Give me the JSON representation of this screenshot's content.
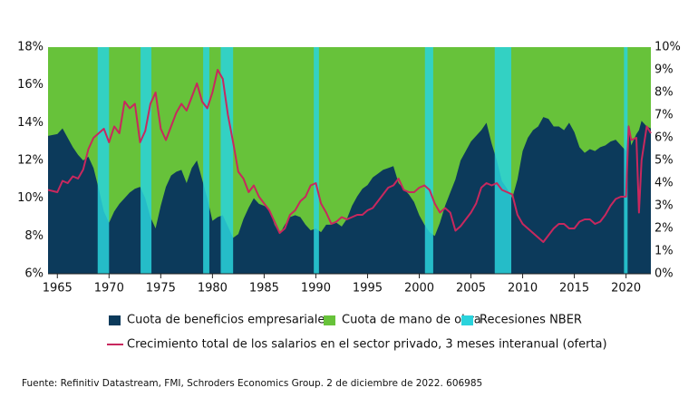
{
  "chart_data": {
    "type": "area",
    "grid": false,
    "xlim": [
      1964.1,
      2022.4
    ],
    "xticks": [
      1965,
      1970,
      1975,
      1980,
      1985,
      1990,
      1995,
      2000,
      2005,
      2010,
      2015,
      2020
    ],
    "ylim": [
      6,
      18
    ],
    "yticks": [
      {
        "value": 6,
        "label": "6%"
      },
      {
        "value": 8,
        "label": "8%"
      },
      {
        "value": 10,
        "label": "10%"
      },
      {
        "value": 12,
        "label": "12%"
      },
      {
        "value": 14,
        "label": "14%"
      },
      {
        "value": 16,
        "label": "16%"
      },
      {
        "value": 18,
        "label": "18%"
      }
    ],
    "y2lim": [
      0,
      10
    ],
    "y2ticks": [
      {
        "value": 0,
        "label": "0%"
      },
      {
        "value": 1,
        "label": "1%"
      },
      {
        "value": 2,
        "label": "2%"
      },
      {
        "value": 3,
        "label": "3%"
      },
      {
        "value": 4,
        "label": "4%"
      },
      {
        "value": 5,
        "label": "5%"
      },
      {
        "value": 6,
        "label": "6%"
      },
      {
        "value": 7,
        "label": "7%"
      },
      {
        "value": 8,
        "label": "8%"
      },
      {
        "value": 9,
        "label": "9%"
      },
      {
        "value": 10,
        "label": "10%"
      }
    ],
    "x": [
      1964.1,
      1965,
      1965.5,
      1966,
      1966.5,
      1967,
      1967.5,
      1968,
      1968.5,
      1969,
      1969.5,
      1970,
      1970.5,
      1971,
      1971.5,
      1972,
      1972.5,
      1973,
      1973.5,
      1974,
      1974.5,
      1975,
      1975.5,
      1976,
      1976.5,
      1977,
      1977.5,
      1978,
      1978.5,
      1979,
      1979.5,
      1980,
      1980.5,
      1981,
      1981.5,
      1982,
      1982.5,
      1983,
      1983.5,
      1984,
      1984.5,
      1985,
      1985.5,
      1986,
      1986.5,
      1987,
      1987.5,
      1988,
      1988.5,
      1989,
      1989.5,
      1990,
      1990.5,
      1991,
      1991.5,
      1992,
      1992.5,
      1993,
      1993.5,
      1994,
      1994.5,
      1995,
      1995.5,
      1996,
      1996.5,
      1997,
      1997.5,
      1998,
      1998.5,
      1999,
      1999.5,
      2000,
      2000.5,
      2001,
      2001.5,
      2002,
      2002.5,
      2003,
      2003.5,
      2004,
      2004.5,
      2005,
      2005.5,
      2006,
      2006.5,
      2007,
      2007.5,
      2008,
      2008.5,
      2009,
      2009.5,
      2010,
      2010.5,
      2011,
      2011.5,
      2012,
      2012.5,
      2013,
      2013.5,
      2014,
      2014.5,
      2015,
      2015.5,
      2016,
      2016.5,
      2017,
      2017.5,
      2018,
      2018.5,
      2019,
      2019.5,
      2020,
      2020.25,
      2020.5,
      2021,
      2021.25,
      2021.5,
      2022,
      2022.4
    ],
    "series": [
      {
        "name": "Cuota de beneficios empresariales",
        "type": "area",
        "color": "#0c3a5b",
        "values": [
          13.3,
          13.4,
          13.7,
          13.2,
          12.7,
          12.3,
          12.0,
          12.2,
          11.6,
          10.5,
          9.3,
          8.7,
          9.3,
          9.7,
          10.0,
          10.3,
          10.5,
          10.6,
          10.0,
          9.0,
          8.4,
          9.6,
          10.6,
          11.2,
          11.4,
          11.5,
          10.8,
          11.6,
          12.0,
          11.0,
          10.0,
          8.8,
          9.0,
          9.1,
          8.5,
          7.9,
          8.1,
          8.9,
          9.5,
          10.0,
          9.7,
          9.6,
          9.4,
          8.6,
          8.1,
          8.6,
          9.0,
          9.1,
          9.0,
          8.6,
          8.3,
          8.4,
          8.2,
          8.6,
          8.6,
          8.7,
          8.5,
          8.9,
          9.6,
          10.1,
          10.5,
          10.7,
          11.1,
          11.3,
          11.5,
          11.6,
          11.7,
          10.8,
          10.5,
          10.2,
          9.8,
          9.1,
          8.6,
          8.2,
          8.0,
          8.7,
          9.6,
          10.3,
          11.0,
          12.0,
          12.5,
          13.0,
          13.3,
          13.6,
          14.0,
          12.9,
          12.0,
          10.9,
          10.5,
          10.0,
          11.0,
          12.5,
          13.2,
          13.6,
          13.8,
          14.3,
          14.2,
          13.8,
          13.8,
          13.6,
          14.0,
          13.5,
          12.7,
          12.4,
          12.6,
          12.5,
          12.7,
          12.8,
          13.0,
          13.1,
          12.8,
          12.5,
          13.9,
          12.8,
          13.4,
          13.6,
          14.1,
          13.8,
          13.7
        ]
      },
      {
        "name": "Cuota de mano de obra",
        "type": "fill-above",
        "color": "#67c23a"
      },
      {
        "name": "Recesiones NBER",
        "type": "span",
        "color": "#2ad3dc",
        "ranges": [
          [
            1968.9,
            1970.0
          ],
          [
            1973.05,
            1974.1
          ],
          [
            1979.1,
            1979.7
          ],
          [
            1980.8,
            1982.0
          ],
          [
            1989.8,
            1990.3
          ],
          [
            2000.55,
            2001.35
          ],
          [
            2007.3,
            2008.9
          ],
          [
            2019.8,
            2020.15
          ]
        ]
      },
      {
        "name": "Crecimiento total de los salarios en el sector privado, 3 meses interanual (oferta)",
        "type": "line",
        "axis": "y2",
        "color": "#c8285e",
        "values": [
          3.7,
          3.6,
          4.1,
          4.0,
          4.3,
          4.2,
          4.6,
          5.5,
          6.0,
          6.2,
          6.4,
          5.8,
          6.5,
          6.2,
          7.6,
          7.3,
          7.5,
          5.8,
          6.3,
          7.5,
          8.0,
          6.4,
          5.9,
          6.5,
          7.1,
          7.5,
          7.2,
          7.8,
          8.4,
          7.6,
          7.3,
          8.0,
          9.0,
          8.6,
          7.0,
          5.8,
          4.5,
          4.2,
          3.6,
          3.9,
          3.4,
          3.1,
          2.8,
          2.3,
          1.8,
          2.0,
          2.6,
          2.8,
          3.2,
          3.4,
          3.9,
          4.0,
          3.1,
          2.7,
          2.2,
          2.3,
          2.5,
          2.4,
          2.5,
          2.6,
          2.6,
          2.8,
          2.9,
          3.2,
          3.5,
          3.8,
          3.9,
          4.2,
          3.7,
          3.6,
          3.6,
          3.8,
          3.9,
          3.7,
          3.1,
          2.7,
          2.9,
          2.7,
          1.9,
          2.1,
          2.4,
          2.7,
          3.1,
          3.8,
          4.0,
          3.9,
          4.0,
          3.7,
          3.6,
          3.5,
          2.6,
          2.2,
          2.0,
          1.8,
          1.6,
          1.4,
          1.7,
          2.0,
          2.2,
          2.2,
          2.0,
          2.0,
          2.3,
          2.4,
          2.4,
          2.2,
          2.3,
          2.6,
          3.0,
          3.3,
          3.4,
          3.4,
          6.5,
          5.9,
          6.0,
          2.7,
          5.0,
          6.5,
          6.2
        ]
      }
    ],
    "source": "Fuente: Refinitiv Datastream, FMI, Schroders Economics Group. 2 de diciembre de 2022. 606985"
  }
}
